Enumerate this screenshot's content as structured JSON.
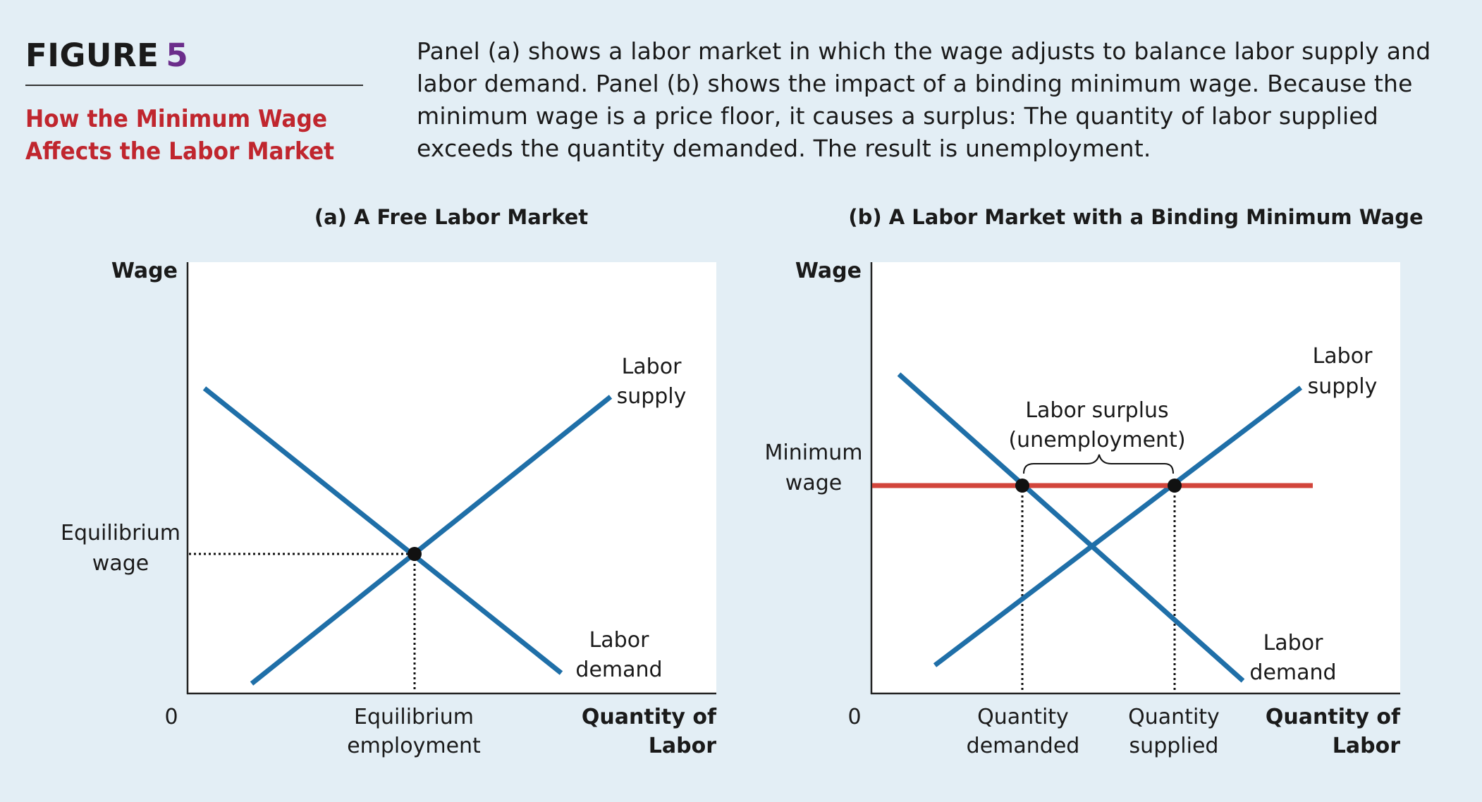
{
  "figure": {
    "label": "FIGURE",
    "number": "5",
    "title_line1": "How the Minimum Wage",
    "title_line2": "Affects the Labor Market",
    "caption": "Panel (a) shows a labor market in which the wage adjusts to balance labor supply and labor demand. Panel (b) shows the impact of a binding minimum wage. Because the minimum wage is a price floor, it causes a surplus: The quantity of labor supplied exceeds the quantity demanded. The result is unemployment."
  },
  "colors": {
    "curve": "#1f6fa8",
    "minimum_wage_line": "#d2453b",
    "title_red": "#c0262e",
    "figure_number": "#6b2d8b",
    "background": "#e3eef5",
    "plot_background": "#ffffff"
  },
  "panel_a": {
    "title": "(a) A Free Labor Market",
    "y_axis_label": "Wage",
    "x_axis_label_line1": "Quantity of",
    "x_axis_label_line2": "Labor",
    "origin": "0",
    "supply_label_line1": "Labor",
    "supply_label_line2": "supply",
    "demand_label_line1": "Labor",
    "demand_label_line2": "demand",
    "eq_wage_line1": "Equilibrium",
    "eq_wage_line2": "wage",
    "eq_emp_line1": "Equilibrium",
    "eq_emp_line2": "employment"
  },
  "panel_b": {
    "title": "(b) A Labor Market with a Binding Minimum Wage",
    "y_axis_label": "Wage",
    "x_axis_label_line1": "Quantity of",
    "x_axis_label_line2": "Labor",
    "origin": "0",
    "supply_label_line1": "Labor",
    "supply_label_line2": "supply",
    "demand_label_line1": "Labor",
    "demand_label_line2": "demand",
    "min_wage_line1": "Minimum",
    "min_wage_line2": "wage",
    "surplus_line1": "Labor surplus",
    "surplus_line2": "(unemployment)",
    "qd_line1": "Quantity",
    "qd_line2": "demanded",
    "qs_line1": "Quantity",
    "qs_line2": "supplied"
  }
}
